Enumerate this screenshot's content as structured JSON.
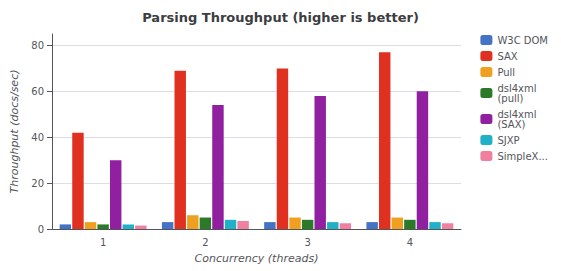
{
  "chart_data": {
    "type": "bar",
    "title": "Parsing Throughput (higher is better)",
    "xlabel": "Concurrency (threads)",
    "ylabel": "Throughput (docs/sec)",
    "categories": [
      1,
      2,
      3,
      4
    ],
    "series": [
      {
        "name": "W3C DOM",
        "color": "#4472c4",
        "values": [
          2,
          3,
          3,
          3
        ]
      },
      {
        "name": "SAX",
        "color": "#e03020",
        "values": [
          42,
          69,
          70,
          77
        ]
      },
      {
        "name": "Pull",
        "color": "#f0a020",
        "values": [
          3,
          6,
          5,
          5
        ]
      },
      {
        "name": "dsl4xml\n(pull)",
        "color": "#2a7a2a",
        "values": [
          2,
          5,
          4,
          4
        ]
      },
      {
        "name": "dsl4xml\n(SAX)",
        "color": "#9020a0",
        "values": [
          30,
          54,
          58,
          60
        ]
      },
      {
        "name": "SJXP",
        "color": "#20b0c8",
        "values": [
          2,
          4,
          3,
          3
        ]
      },
      {
        "name": "SimpleX...",
        "color": "#f080a0",
        "values": [
          1.5,
          3.5,
          2.5,
          2.5
        ]
      }
    ],
    "ylim": [
      0,
      85
    ],
    "yticks": [
      0,
      20,
      40,
      60,
      80
    ],
    "grid": true,
    "legend": "right"
  }
}
